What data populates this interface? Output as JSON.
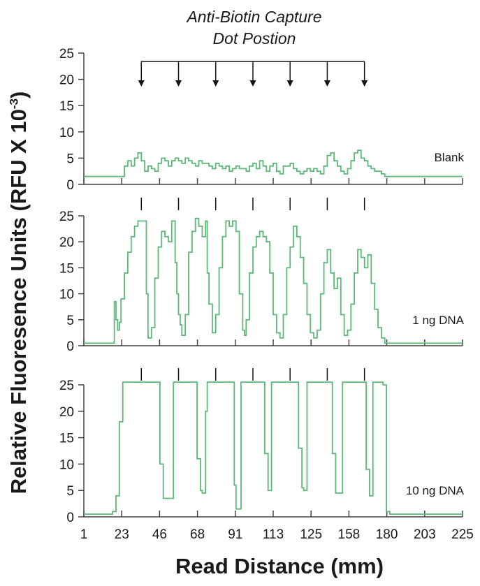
{
  "chart_data": [
    {
      "type": "line",
      "title": "Anti-Biotin Capture Dot Postion",
      "title_lines": [
        "Anti-Biotin Capture",
        "Dot Postion"
      ],
      "ylabel": "Relative Fluoresence Units (RFU X 10",
      "ylabel_sup": "-3",
      "ylabel_close": ")",
      "xlabel": "Read Distance (mm)",
      "x_tick_labels": [
        "1",
        "23",
        "46",
        "68",
        "91",
        "113",
        "125",
        "158",
        "180",
        "203",
        "225"
      ],
      "dot_positions": [
        35,
        57,
        79,
        101,
        123,
        145,
        167
      ],
      "line_color": "#5cb87a",
      "grid": false,
      "panels": [
        {
          "label": "Blank",
          "ylim": [
            0,
            25
          ],
          "yticks": [
            0,
            5,
            10,
            15,
            20,
            25
          ],
          "arrows": true,
          "series": {
            "x": [
              1,
              23,
              25,
              27,
              29,
              31,
              33,
              35,
              37,
              39,
              41,
              43,
              45,
              47,
              49,
              51,
              53,
              55,
              57,
              59,
              61,
              63,
              65,
              67,
              69,
              71,
              73,
              75,
              77,
              79,
              81,
              83,
              85,
              87,
              89,
              91,
              93,
              95,
              97,
              99,
              101,
              103,
              105,
              107,
              109,
              111,
              113,
              115,
              117,
              119,
              121,
              123,
              125,
              127,
              129,
              131,
              133,
              135,
              137,
              139,
              141,
              143,
              145,
              147,
              149,
              151,
              153,
              155,
              157,
              159,
              161,
              163,
              165,
              167,
              169,
              171,
              173,
              175,
              177,
              179,
              181,
              225
            ],
            "y": [
              1.5,
              1.5,
              3.5,
              4.5,
              3.5,
              5,
              6,
              4.5,
              2.5,
              3.5,
              3,
              2.5,
              4,
              5,
              4.5,
              3.5,
              4.5,
              5,
              4.5,
              4,
              5,
              4.5,
              4,
              3.5,
              4.5,
              4,
              4,
              3.5,
              3,
              4,
              3.5,
              3,
              3.5,
              2.5,
              3,
              3.5,
              3,
              3,
              2.5,
              3.5,
              4,
              3,
              4.5,
              3.5,
              2.5,
              3.5,
              4,
              2.5,
              2,
              3.5,
              3.5,
              4,
              3,
              2.5,
              2,
              2.5,
              3,
              2.5,
              3,
              2.5,
              2,
              3.5,
              5.5,
              6,
              4.5,
              3.5,
              2.5,
              2,
              3,
              4.5,
              6,
              6.5,
              5,
              4.5,
              3.5,
              3,
              2.5,
              2.5,
              2,
              1.5,
              1.5,
              1.5
            ]
          }
        },
        {
          "label": "1 ng DNA",
          "ylim": [
            0,
            25
          ],
          "yticks": [
            0,
            5,
            10,
            15,
            20,
            25
          ],
          "arrows": false,
          "series": {
            "x": [
              1,
              18,
              19,
              20,
              21,
              22,
              23,
              25,
              27,
              29,
              31,
              33,
              35,
              37,
              38,
              39,
              41,
              43,
              45,
              47,
              49,
              51,
              53,
              55,
              56,
              57,
              58,
              59,
              61,
              63,
              65,
              67,
              69,
              71,
              73,
              74,
              75,
              77,
              79,
              81,
              83,
              85,
              87,
              89,
              91,
              93,
              95,
              96,
              97,
              99,
              101,
              103,
              105,
              107,
              109,
              111,
              113,
              115,
              117,
              119,
              121,
              123,
              125,
              127,
              129,
              131,
              133,
              135,
              137,
              139,
              141,
              143,
              145,
              147,
              149,
              151,
              153,
              155,
              157,
              159,
              161,
              163,
              165,
              167,
              169,
              171,
              173,
              175,
              177,
              179,
              181,
              225
            ],
            "y": [
              0.5,
              0.5,
              8.5,
              5,
              3,
              4.5,
              9,
              14,
              18,
              21,
              23,
              24,
              24,
              24,
              10,
              1.5,
              3.5,
              13,
              19,
              22,
              21,
              20,
              24,
              16,
              10,
              6,
              4,
              2,
              6,
              18,
              22,
              24.5,
              23,
              21,
              24,
              14,
              8,
              2.5,
              6,
              15,
              21,
              24,
              23,
              24,
              22,
              10,
              3,
              2,
              5,
              14,
              19,
              21,
              22,
              21,
              20,
              14,
              6,
              2.5,
              1.5,
              6,
              15,
              19,
              23,
              21,
              17,
              12,
              6,
              2.5,
              1.5,
              3,
              10,
              16,
              18.5,
              14,
              11,
              13,
              6,
              2,
              3,
              8,
              14,
              18.5,
              17,
              15,
              17.5,
              12,
              7,
              3.5,
              1.5,
              0.5,
              0.5,
              0.5
            ]
          }
        },
        {
          "label": "10 ng DNA",
          "ylim": [
            0,
            25
          ],
          "yticks": [
            0,
            5,
            10,
            15,
            20,
            25
          ],
          "arrows": false,
          "series": {
            "x": [
              1,
              14,
              18,
              20,
              22,
              24,
              26,
              44,
              46,
              48,
              50,
              54,
              66,
              68,
              70,
              71,
              73,
              74,
              76,
              88,
              90,
              91,
              93,
              94,
              106,
              108,
              110,
              112,
              114,
              126,
              128,
              130,
              131,
              133,
              135,
              146,
              148,
              150,
              152,
              154,
              156,
              166,
              168,
              170,
              172,
              174,
              176,
              178,
              180,
              182,
              225
            ],
            "y": [
              0.5,
              0.5,
              1,
              4,
              18,
              25.5,
              25.5,
              25.5,
              10,
              3.5,
              3.5,
              25.5,
              25.5,
              11,
              5,
              4.5,
              20,
              25.5,
              25.5,
              25.5,
              6,
              1.5,
              1.5,
              25.5,
              25.5,
              12,
              5,
              25.5,
              25.5,
              25.5,
              13,
              5.5,
              5,
              25.5,
              25.5,
              25.5,
              12,
              4.5,
              4.5,
              25.5,
              25.5,
              25.5,
              9,
              4,
              25.5,
              25.5,
              25.5,
              25,
              1,
              0.5,
              0.5
            ]
          }
        }
      ]
    }
  ]
}
